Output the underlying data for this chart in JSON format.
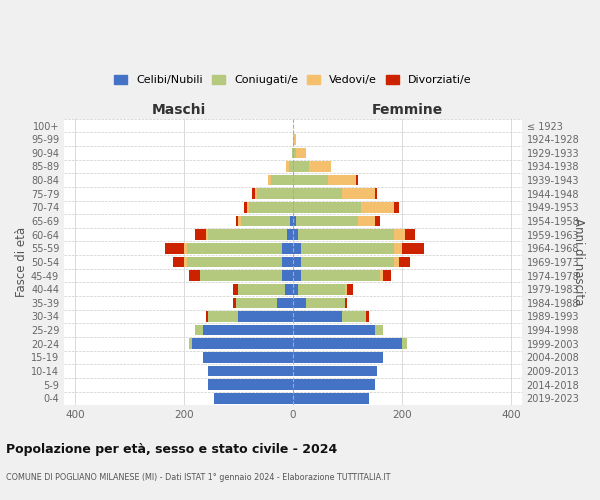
{
  "age_groups": [
    "0-4",
    "5-9",
    "10-14",
    "15-19",
    "20-24",
    "25-29",
    "30-34",
    "35-39",
    "40-44",
    "45-49",
    "50-54",
    "55-59",
    "60-64",
    "65-69",
    "70-74",
    "75-79",
    "80-84",
    "85-89",
    "90-94",
    "95-99",
    "100+"
  ],
  "birth_years": [
    "2019-2023",
    "2014-2018",
    "2009-2013",
    "2004-2008",
    "1999-2003",
    "1994-1998",
    "1989-1993",
    "1984-1988",
    "1979-1983",
    "1974-1978",
    "1969-1973",
    "1964-1968",
    "1959-1963",
    "1954-1958",
    "1949-1953",
    "1944-1948",
    "1939-1943",
    "1934-1938",
    "1929-1933",
    "1924-1928",
    "≤ 1923"
  ],
  "maschi": {
    "celibi": [
      145,
      155,
      155,
      165,
      185,
      165,
      100,
      30,
      15,
      20,
      20,
      20,
      10,
      5,
      0,
      0,
      0,
      0,
      0,
      0,
      0
    ],
    "coniugati": [
      0,
      0,
      0,
      0,
      5,
      15,
      55,
      75,
      85,
      150,
      175,
      175,
      145,
      90,
      80,
      65,
      40,
      8,
      2,
      0,
      0
    ],
    "vedovi": [
      0,
      0,
      0,
      0,
      0,
      0,
      0,
      0,
      0,
      0,
      5,
      5,
      5,
      5,
      5,
      5,
      5,
      5,
      0,
      0,
      0
    ],
    "divorziati": [
      0,
      0,
      0,
      0,
      0,
      0,
      5,
      5,
      10,
      20,
      20,
      35,
      20,
      5,
      5,
      5,
      0,
      0,
      0,
      0,
      0
    ]
  },
  "femmine": {
    "nubili": [
      140,
      150,
      155,
      165,
      200,
      150,
      90,
      25,
      10,
      15,
      15,
      15,
      10,
      5,
      0,
      0,
      0,
      0,
      0,
      0,
      0
    ],
    "coniugate": [
      0,
      0,
      0,
      0,
      10,
      15,
      45,
      70,
      85,
      145,
      170,
      170,
      175,
      115,
      125,
      90,
      65,
      30,
      5,
      0,
      0
    ],
    "vedove": [
      0,
      0,
      0,
      0,
      0,
      0,
      0,
      0,
      5,
      5,
      10,
      15,
      20,
      30,
      60,
      60,
      50,
      40,
      20,
      5,
      0
    ],
    "divorziate": [
      0,
      0,
      0,
      0,
      0,
      0,
      5,
      5,
      10,
      15,
      20,
      40,
      20,
      10,
      10,
      5,
      5,
      0,
      0,
      0,
      0
    ]
  },
  "colors": {
    "celibi_nubili": "#4472c4",
    "coniugati": "#b4c97e",
    "vedovi": "#f5c06e",
    "divorziati": "#cc2200"
  },
  "xlim": 420,
  "title": "Popolazione per età, sesso e stato civile - 2024",
  "subtitle": "COMUNE DI POGLIANO MILANESE (MI) - Dati ISTAT 1° gennaio 2024 - Elaborazione TUTTITALIA.IT",
  "ylabel_left": "Fasce di età",
  "ylabel_right": "Anni di nascita",
  "xlabel_maschi": "Maschi",
  "xlabel_femmine": "Femmine",
  "legend_labels": [
    "Celibi/Nubili",
    "Coniugati/e",
    "Vedovi/e",
    "Divorziati/e"
  ],
  "bg_color": "#f0f0f0",
  "plot_bg": "#ffffff"
}
